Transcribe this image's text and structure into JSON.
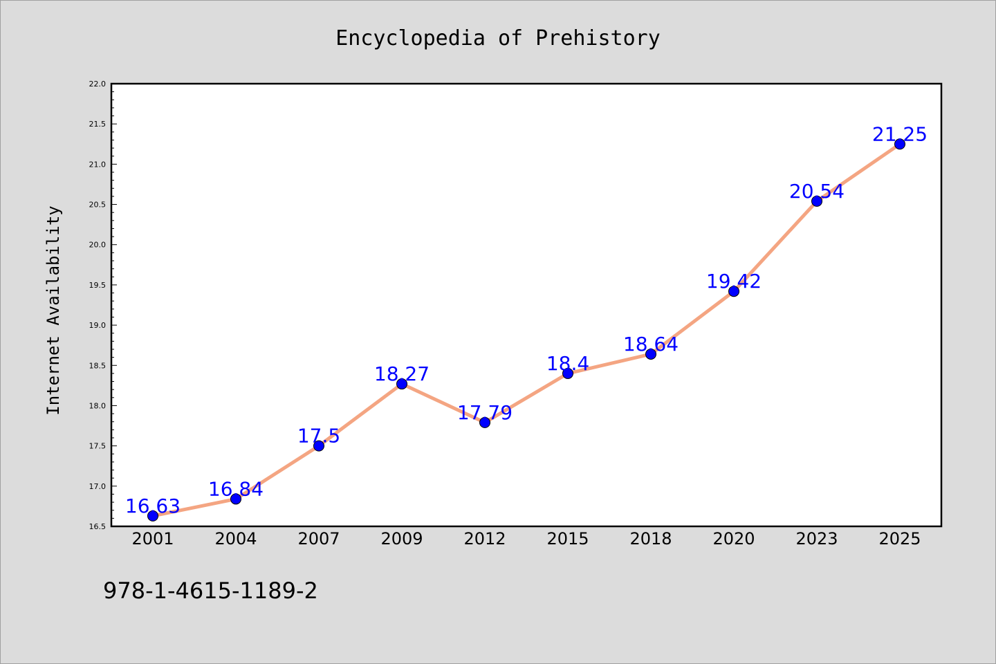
{
  "chart_data": {
    "type": "line",
    "title": "Encyclopedia of Prehistory",
    "xlabel": "",
    "ylabel": "Internet Availability",
    "categories": [
      "2001",
      "2004",
      "2007",
      "2009",
      "2012",
      "2015",
      "2018",
      "2020",
      "2023",
      "2025"
    ],
    "series": [
      {
        "values": [
          16.63,
          16.84,
          17.5,
          18.27,
          17.79,
          18.4,
          18.64,
          19.42,
          20.54,
          21.25
        ],
        "data_labels": [
          "16.63",
          "16.84",
          "17.5",
          "18.27",
          "17.79",
          "18.4",
          "18.64",
          "19.42",
          "20.54",
          "21.25"
        ]
      }
    ],
    "ylim": [
      16.5,
      22.0
    ],
    "y_ticks": [
      "16.5",
      "17.0",
      "17.5",
      "18.0",
      "18.5",
      "19.0",
      "19.5",
      "20.0",
      "20.5",
      "21.0",
      "21.5",
      "22.0"
    ],
    "grid": false,
    "legend": "none",
    "colors": {
      "line": "#f4a582",
      "marker": "#0000ff",
      "data_label": "#0000ff",
      "background": "#dcdcdc",
      "plot_background": "#ffffff"
    }
  },
  "footer_text": "978-1-4615-1189-2"
}
